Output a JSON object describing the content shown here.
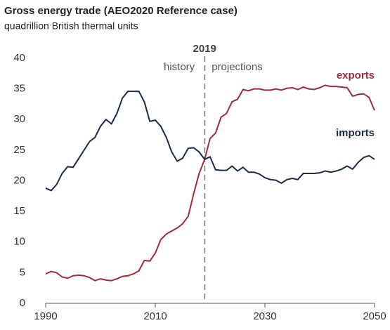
{
  "chart_data": {
    "type": "line",
    "title": "Gross energy trade (AEO2020 Reference case)",
    "subtitle": "quadrillion British thermal units",
    "divider": 2019,
    "annotations": [
      "history",
      "projections"
    ],
    "x": [
      1990,
      1991,
      1992,
      1993,
      1994,
      1995,
      1996,
      1997,
      1998,
      1999,
      2000,
      2001,
      2002,
      2003,
      2004,
      2005,
      2006,
      2007,
      2008,
      2009,
      2010,
      2011,
      2012,
      2013,
      2014,
      2015,
      2016,
      2017,
      2018,
      2019,
      2020,
      2021,
      2022,
      2023,
      2024,
      2025,
      2026,
      2027,
      2028,
      2029,
      2030,
      2031,
      2032,
      2033,
      2034,
      2035,
      2036,
      2037,
      2038,
      2039,
      2040,
      2041,
      2042,
      2043,
      2044,
      2045,
      2046,
      2047,
      2048,
      2049,
      2050
    ],
    "series": [
      {
        "name": "exports",
        "color": "#9e2a3c",
        "values": [
          4.8,
          5.2,
          5.0,
          4.3,
          4.1,
          4.5,
          4.6,
          4.5,
          4.2,
          3.7,
          4.0,
          3.8,
          3.7,
          4.0,
          4.4,
          4.5,
          4.8,
          5.3,
          7.0,
          6.9,
          8.2,
          10.4,
          11.3,
          11.8,
          12.3,
          13.0,
          14.2,
          17.9,
          21.2,
          23.5,
          26.9,
          27.8,
          30.4,
          31.0,
          32.9,
          33.3,
          34.9,
          34.7,
          35.0,
          35.0,
          34.8,
          34.8,
          35.0,
          34.8,
          35.1,
          35.2,
          34.9,
          35.3,
          35.0,
          34.9,
          35.2,
          35.6,
          35.4,
          35.4,
          35.3,
          35.2,
          33.8,
          34.1,
          34.2,
          33.6,
          31.5
        ]
      },
      {
        "name": "imports",
        "color": "#1b2b47",
        "values": [
          18.8,
          18.4,
          19.4,
          21.2,
          22.3,
          22.2,
          23.6,
          25.0,
          26.4,
          27.1,
          28.9,
          30.0,
          29.3,
          31.0,
          33.5,
          34.6,
          34.6,
          34.6,
          32.9,
          29.7,
          29.9,
          28.9,
          27.1,
          24.7,
          23.2,
          23.7,
          25.3,
          25.4,
          24.7,
          23.5,
          23.9,
          21.8,
          21.7,
          21.7,
          22.4,
          21.6,
          22.2,
          21.4,
          21.4,
          21.1,
          20.5,
          20.2,
          20.1,
          19.6,
          20.2,
          20.4,
          20.2,
          21.2,
          21.2,
          21.2,
          21.3,
          21.6,
          21.4,
          21.6,
          21.9,
          22.4,
          21.9,
          23.0,
          23.8,
          24.1,
          23.5
        ]
      }
    ],
    "xlim": [
      1990,
      2050
    ],
    "xticks": [
      1990,
      2010,
      2030,
      2050
    ],
    "ylim": [
      0,
      40
    ],
    "yticks": [
      0,
      5,
      10,
      15,
      20,
      25,
      30,
      35,
      40
    ],
    "grid": false
  }
}
